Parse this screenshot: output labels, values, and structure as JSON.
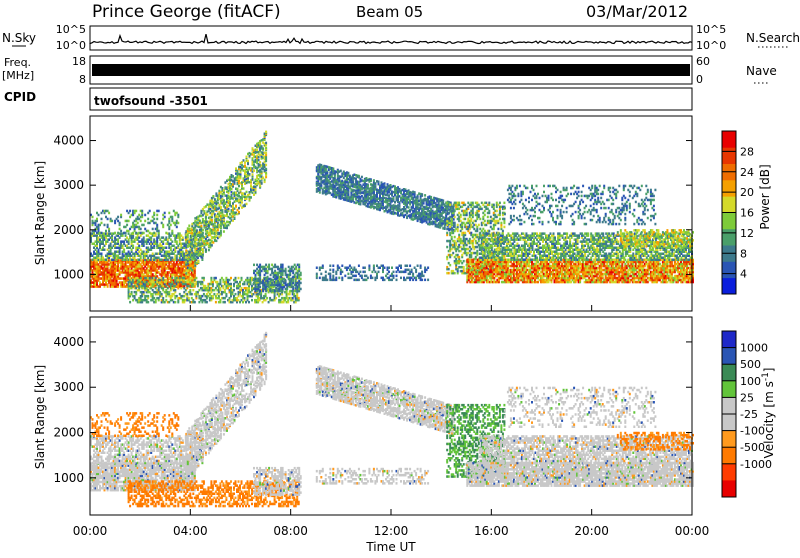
{
  "header": {
    "station": "Prince George (fitACF)",
    "beam": "Beam 05",
    "date": "03/Mar/2012"
  },
  "noise_panel": {
    "left_label": "N.Sky",
    "right_label": "N.Search",
    "left_ticks": [
      "10^5",
      "10^0"
    ],
    "right_ticks": [
      "10^5",
      "10^0"
    ]
  },
  "freq_panel": {
    "left_label_line1": "Freq.",
    "left_label_line2": "[MHz]",
    "right_label": "Nave",
    "left_ticks": [
      "18",
      "8"
    ],
    "right_ticks": [
      "60",
      "0"
    ]
  },
  "cpid_panel": {
    "label": "CPID",
    "program": "twofsound  -3501"
  },
  "colors": {
    "power_scale": [
      "#0a1edc",
      "#2a55b4",
      "#3d7a8c",
      "#4a9f6a",
      "#7ecb3a",
      "#d4d92a",
      "#f5a000",
      "#f06d00",
      "#e83600",
      "#e80000"
    ],
    "velocity_scale": [
      "#1e28c8",
      "#2a55b4",
      "#3a8a55",
      "#62c43a",
      "#c8c8c8",
      "#c8c8c8",
      "#ff9a1e",
      "#ff7a00",
      "#ff3c00",
      "#e80000"
    ]
  },
  "chart_data": [
    {
      "type": "heatmap",
      "name": "power",
      "xlabel": "",
      "ylabel": "Slant Range [km]",
      "xlim": [
        "00:00",
        "24:00"
      ],
      "ylim": [
        180,
        4550
      ],
      "x_ticks": [
        "00:00",
        "04:00",
        "08:00",
        "12:00",
        "16:00",
        "20:00",
        "00:00"
      ],
      "y_ticks": [
        1000,
        2000,
        3000,
        4000
      ],
      "colorbar": {
        "label": "Power [dB]",
        "range": [
          0,
          32
        ],
        "ticks": [
          4,
          8,
          12,
          16,
          20,
          24,
          28
        ]
      }
    },
    {
      "type": "heatmap",
      "name": "velocity",
      "xlabel": "Time UT",
      "ylabel": "Slant Range [km]",
      "xlim": [
        "00:00",
        "24:00"
      ],
      "ylim": [
        180,
        4550
      ],
      "x_ticks": [
        "00:00",
        "04:00",
        "08:00",
        "12:00",
        "16:00",
        "20:00",
        "00:00"
      ],
      "y_ticks": [
        1000,
        2000,
        3000,
        4000
      ],
      "colorbar": {
        "label": "Velocity [m s-1]",
        "levels": [
          "1000",
          "500",
          "100",
          "25",
          "-25",
          "-100",
          "-500",
          "-1000"
        ]
      }
    }
  ]
}
